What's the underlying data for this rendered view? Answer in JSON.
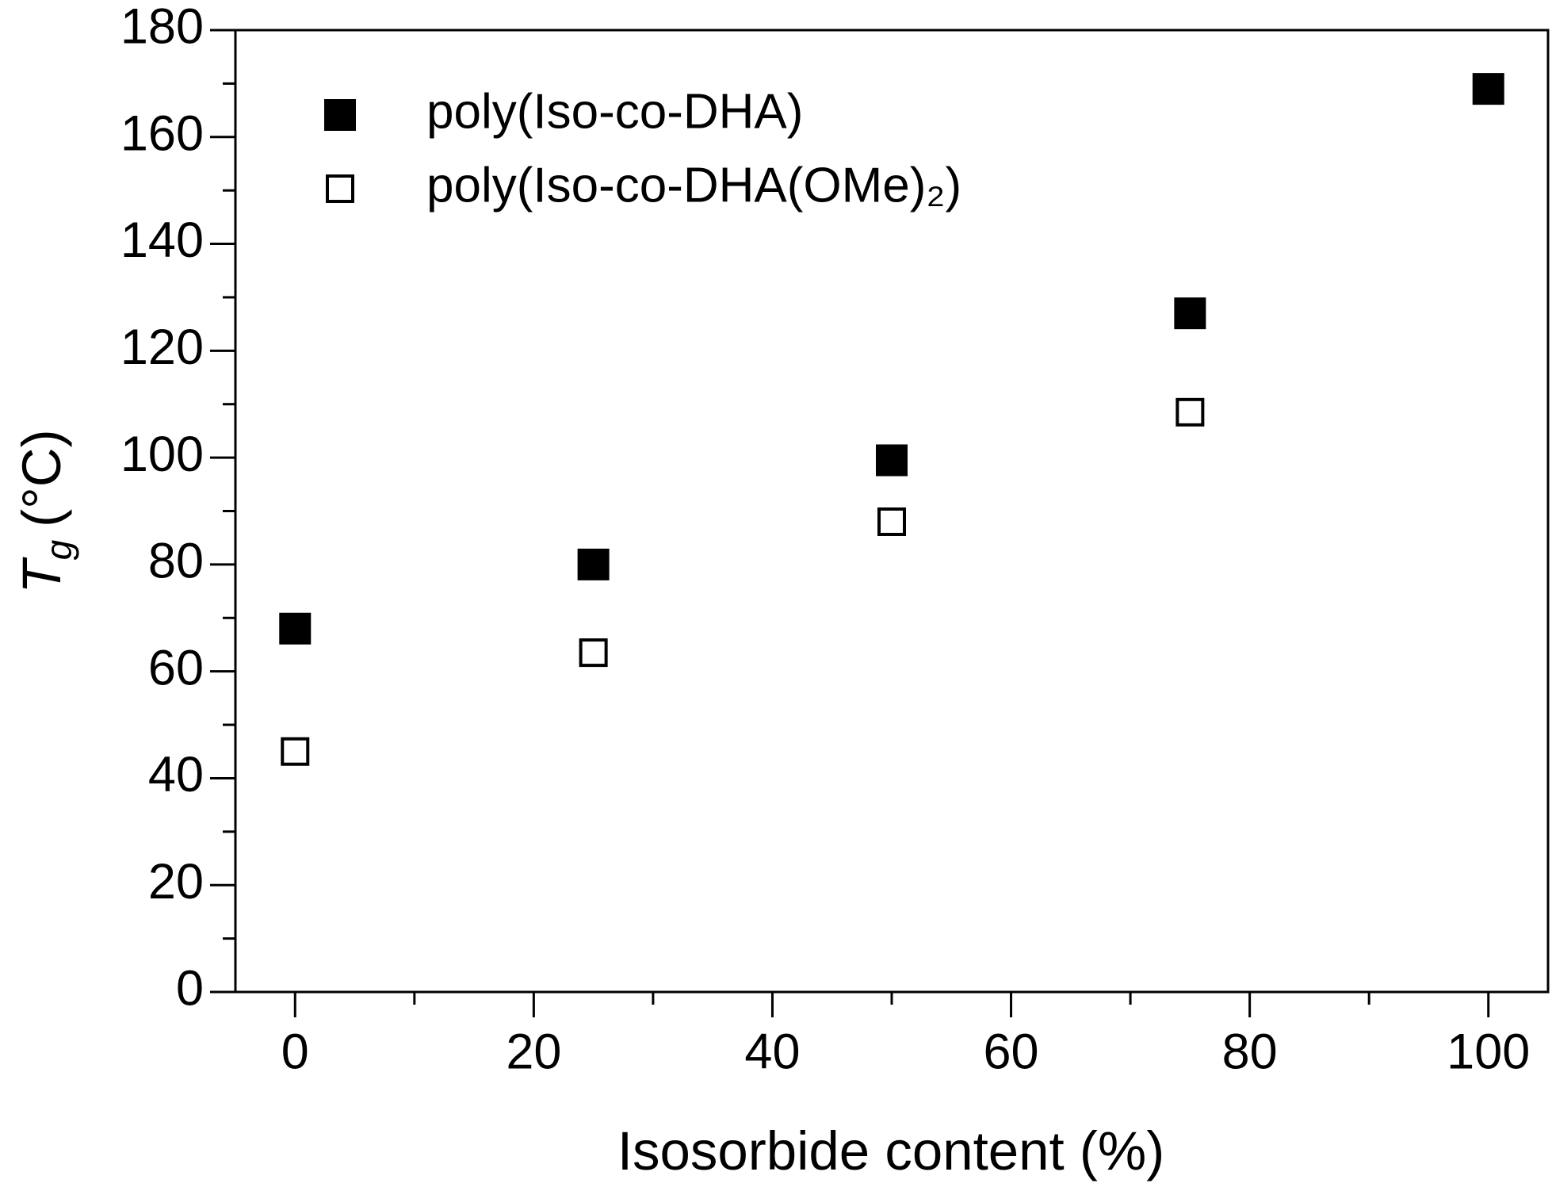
{
  "chart_data": {
    "type": "scatter",
    "xlabel": "Isosorbide content (%)",
    "ylabel": [
      "T",
      "g",
      "(°C)"
    ],
    "xlim": [
      -5,
      105
    ],
    "ylim": [
      0,
      180
    ],
    "xticks": [
      0,
      20,
      40,
      60,
      80,
      100
    ],
    "yticks": [
      0,
      20,
      40,
      60,
      80,
      100,
      120,
      140,
      160,
      180
    ],
    "xminorticks": [
      10,
      30,
      50,
      70,
      90
    ],
    "yminorticks": [
      10,
      30,
      50,
      70,
      90,
      110,
      130,
      150,
      170
    ],
    "legend": "upper left",
    "series": [
      {
        "name": "poly(Iso-co-DHA)",
        "color": "#000000",
        "marker": "filled-square",
        "x": [
          0,
          25,
          50,
          75,
          100
        ],
        "values": [
          68,
          80,
          99.5,
          127,
          169
        ]
      },
      {
        "name": "poly(Iso-co-DHA(OMe)₂)",
        "color": "#000000",
        "marker": "open-square",
        "x": [
          0,
          25,
          50,
          75
        ],
        "values": [
          45,
          63.5,
          88,
          108.5
        ]
      }
    ]
  }
}
